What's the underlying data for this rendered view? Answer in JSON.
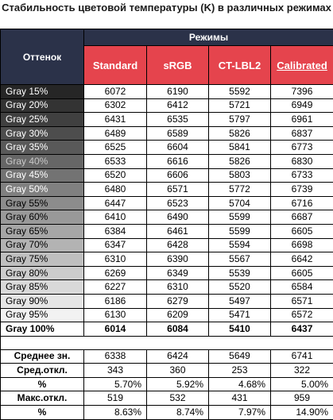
{
  "title": "Стабильность цветовой температуры (K) в различных режимах",
  "header": {
    "shade_label": "Оттенок",
    "modes_label": "Режимы",
    "columns": [
      "Standard",
      "sRGB",
      "CT-LBL2",
      "Calibrated"
    ]
  },
  "rows": [
    {
      "label": "Gray 15%",
      "values": [
        "6072",
        "6190",
        "5592",
        "7396"
      ],
      "bg": "#262626",
      "fg": "#ffffff"
    },
    {
      "label": "Gray 20%",
      "values": [
        "6302",
        "6412",
        "5721",
        "6949"
      ],
      "bg": "#333333",
      "fg": "#ffffff"
    },
    {
      "label": "Gray 25%",
      "values": [
        "6431",
        "6535",
        "5797",
        "6961"
      ],
      "bg": "#404040",
      "fg": "#ffffff"
    },
    {
      "label": "Gray 30%",
      "values": [
        "6489",
        "6589",
        "5826",
        "6837"
      ],
      "bg": "#4d4d4d",
      "fg": "#ffffff"
    },
    {
      "label": "Gray 35%",
      "values": [
        "6525",
        "6604",
        "5841",
        "6773"
      ],
      "bg": "#595959",
      "fg": "#ffffff"
    },
    {
      "label": "Gray 40%",
      "values": [
        "6533",
        "6616",
        "5826",
        "6830"
      ],
      "bg": "#666666",
      "fg": "#c8c8c8"
    },
    {
      "label": "Gray 45%",
      "values": [
        "6520",
        "6606",
        "5803",
        "6733"
      ],
      "bg": "#737373",
      "fg": "#ffffff"
    },
    {
      "label": "Gray 50%",
      "values": [
        "6480",
        "6571",
        "5772",
        "6739"
      ],
      "bg": "#808080",
      "fg": "#ffffff"
    },
    {
      "label": "Gray 55%",
      "values": [
        "6447",
        "6523",
        "5704",
        "6716"
      ],
      "bg": "#8c8c8c",
      "fg": "#000000"
    },
    {
      "label": "Gray 60%",
      "values": [
        "6410",
        "6490",
        "5599",
        "6687"
      ],
      "bg": "#999999",
      "fg": "#000000"
    },
    {
      "label": "Gray 65%",
      "values": [
        "6384",
        "6461",
        "5599",
        "6605"
      ],
      "bg": "#a6a6a6",
      "fg": "#000000"
    },
    {
      "label": "Gray 70%",
      "values": [
        "6347",
        "6428",
        "5594",
        "6698"
      ],
      "bg": "#b3b3b3",
      "fg": "#000000"
    },
    {
      "label": "Gray 75%",
      "values": [
        "6310",
        "6390",
        "5567",
        "6642"
      ],
      "bg": "#bfbfbf",
      "fg": "#000000"
    },
    {
      "label": "Gray 80%",
      "values": [
        "6269",
        "6349",
        "5539",
        "6605"
      ],
      "bg": "#cccccc",
      "fg": "#000000"
    },
    {
      "label": "Gray 85%",
      "values": [
        "6227",
        "6310",
        "5520",
        "6584"
      ],
      "bg": "#d9d9d9",
      "fg": "#000000"
    },
    {
      "label": "Gray 90%",
      "values": [
        "6186",
        "6279",
        "5497",
        "6571"
      ],
      "bg": "#e6e6e6",
      "fg": "#000000"
    },
    {
      "label": "Gray 95%",
      "values": [
        "6130",
        "6209",
        "5471",
        "6572"
      ],
      "bg": "#f2f2f2",
      "fg": "#000000"
    },
    {
      "label": "Gray 100%",
      "values": [
        "6014",
        "6084",
        "5410",
        "6437"
      ],
      "bg": "#ffffff",
      "fg": "#000000",
      "bold": true
    }
  ],
  "stats": [
    {
      "label": "Среднее зн.",
      "values": [
        "6338",
        "6424",
        "5649",
        "6741"
      ],
      "pct": false
    },
    {
      "label": "Сред.откл.",
      "values": [
        "343",
        "360",
        "253",
        "322"
      ],
      "pct": false
    },
    {
      "label": "%",
      "values": [
        "5.70%",
        "5.92%",
        "4.68%",
        "5.00%"
      ],
      "pct": true
    },
    {
      "label": "Макс.откл.",
      "values": [
        "519",
        "532",
        "431",
        "959"
      ],
      "pct": false
    },
    {
      "label": "%",
      "values": [
        "8.63%",
        "8.74%",
        "7.97%",
        "14.90%"
      ],
      "pct": true
    }
  ],
  "colors": {
    "header_dark": "#2b3249",
    "header_red": "#e5444d"
  }
}
